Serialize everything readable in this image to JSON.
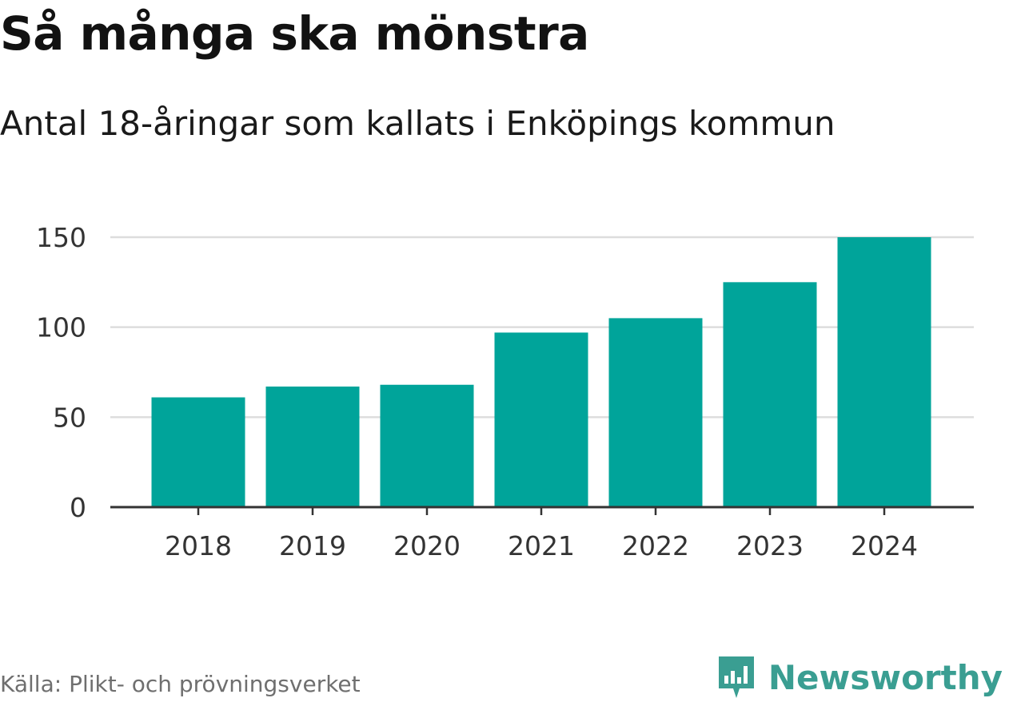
{
  "header": {
    "title": "Så många ska mönstra",
    "subtitle": "Antal 18-åringar som kallats i Enköpings kommun"
  },
  "chart_data": {
    "type": "bar",
    "title": "Så många ska mönstra",
    "subtitle": "Antal 18-åringar som kallats i Enköpings kommun",
    "categories": [
      "2018",
      "2019",
      "2020",
      "2021",
      "2022",
      "2023",
      "2024"
    ],
    "values": [
      61,
      67,
      68,
      97,
      105,
      125,
      150
    ],
    "xlabel": "",
    "ylabel": "",
    "ylim": [
      0,
      150
    ],
    "yticks": [
      0,
      50,
      100,
      150
    ],
    "ytick_labels": [
      "0",
      "50",
      "100",
      "150"
    ],
    "grid": true,
    "bar_color": "#00a49a",
    "grid_color": "#dddddd",
    "axis_color": "#333333",
    "legend": "none"
  },
  "footer": {
    "source": "Källa: Plikt- och prövningsverket",
    "brand": "Newsworthy",
    "brand_icon": "newsworthy-logo-icon",
    "brand_color": "#3a9e92"
  }
}
